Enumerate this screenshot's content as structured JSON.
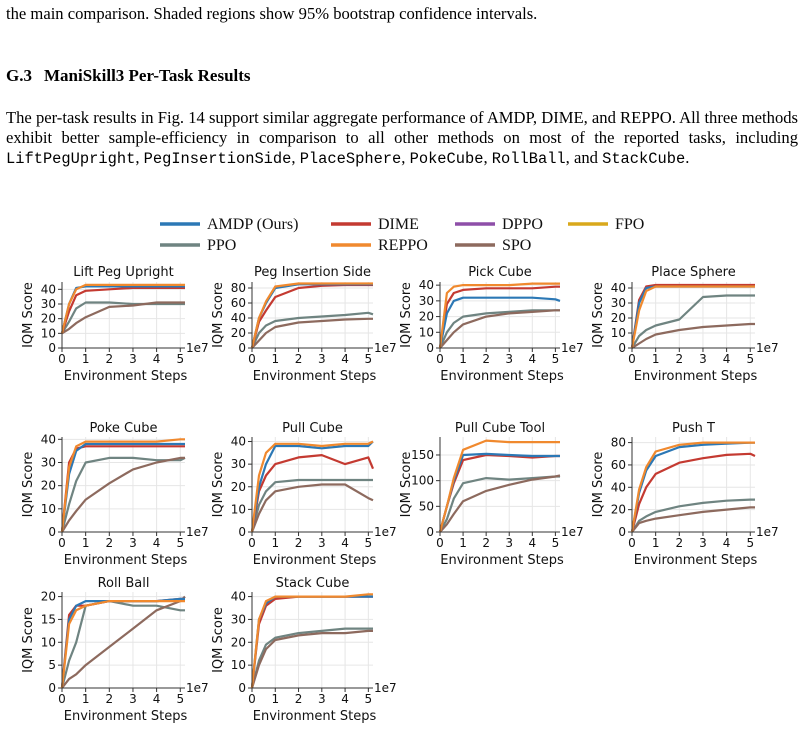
{
  "document": {
    "intro_tail": "the main comparison. Shaded regions show 95% bootstrap confidence intervals.",
    "section": {
      "number": "G.3",
      "title": "ManiSkill3 Per-Task Results"
    },
    "paragraph": [
      {
        "text": "The per-task results in Fig. 14 support similar aggregate performance of AMDP, DIME, and REPPO. All three methods exhibit better sample-efficiency in comparison to all other methods on most of the reported tasks, including "
      },
      {
        "code": "LiftPegUpright"
      },
      {
        "text": ", "
      },
      {
        "code": "PegInsertionSide"
      },
      {
        "text": ", "
      },
      {
        "code": "PlaceSphere"
      },
      {
        "text": ", "
      },
      {
        "code": "PokeCube"
      },
      {
        "text": ", "
      },
      {
        "code": "RollBall"
      },
      {
        "text": ", and "
      },
      {
        "code": "StackCube"
      },
      {
        "text": "."
      }
    ]
  },
  "figure": {
    "legend": [
      {
        "name": "AMDP (Ours)",
        "color": "#2c78b5"
      },
      {
        "name": "DIME",
        "color": "#c43a31"
      },
      {
        "name": "DPPO",
        "color": "#8e4fa8"
      },
      {
        "name": "FPO",
        "color": "#d9a81c"
      },
      {
        "name": "PPO",
        "color": "#6f8481"
      },
      {
        "name": "REPPO",
        "color": "#f0892e"
      },
      {
        "name": "SPO",
        "color": "#8d6a5e"
      }
    ]
  },
  "chart_data": [
    {
      "type": "line",
      "title": "Lift Peg Upright",
      "ylabel": "IQM Score",
      "xlabel": "Environment Steps",
      "x_offset_label": "1e7",
      "x": [
        0,
        0.3,
        0.6,
        1,
        2,
        3,
        4,
        5,
        5.2
      ],
      "xlim": [
        0,
        5.2
      ],
      "xticks": [
        0,
        1,
        2,
        3,
        4,
        5
      ],
      "ylim": [
        0,
        45
      ],
      "yticks": [
        0,
        10,
        20,
        30,
        40
      ],
      "grid": true,
      "series": [
        {
          "name": "PPO",
          "values": [
            10,
            18,
            27,
            31,
            31,
            30,
            30,
            30,
            30
          ]
        },
        {
          "name": "SPO",
          "values": [
            10,
            13,
            17,
            21,
            28,
            29,
            31,
            31,
            31
          ]
        },
        {
          "name": "DIME",
          "values": [
            10,
            25,
            36,
            39,
            40,
            41,
            41,
            41,
            41
          ]
        },
        {
          "name": "AMDP (Ours)",
          "values": [
            10,
            30,
            41,
            42,
            42,
            42,
            42,
            42,
            42
          ]
        },
        {
          "name": "REPPO",
          "values": [
            10,
            30,
            40,
            43,
            43,
            43,
            43,
            43,
            43
          ]
        }
      ]
    },
    {
      "type": "line",
      "title": "Peg Insertion Side",
      "ylabel": "IQM Score",
      "xlabel": "Environment Steps",
      "x_offset_label": "1e7",
      "x": [
        0,
        0.3,
        0.6,
        1,
        2,
        3,
        4,
        5,
        5.2
      ],
      "xlim": [
        0,
        5.2
      ],
      "xticks": [
        0,
        1,
        2,
        3,
        4,
        5
      ],
      "ylim": [
        0,
        88
      ],
      "yticks": [
        0,
        20,
        40,
        60,
        80
      ],
      "grid": true,
      "series": [
        {
          "name": "PPO",
          "values": [
            0,
            20,
            30,
            36,
            40,
            42,
            44,
            47,
            45
          ]
        },
        {
          "name": "SPO",
          "values": [
            0,
            10,
            20,
            28,
            34,
            36,
            38,
            39,
            39
          ]
        },
        {
          "name": "DIME",
          "values": [
            0,
            35,
            50,
            68,
            80,
            83,
            84,
            84,
            84
          ]
        },
        {
          "name": "AMDP (Ours)",
          "values": [
            0,
            40,
            60,
            80,
            85,
            85,
            85,
            85,
            85
          ]
        },
        {
          "name": "REPPO",
          "values": [
            0,
            40,
            62,
            82,
            86,
            86,
            86,
            86,
            86
          ]
        }
      ]
    },
    {
      "type": "line",
      "title": "Pick Cube",
      "ylabel": "IQM Score",
      "xlabel": "Environment Steps",
      "x_offset_label": "1e7",
      "x": [
        0,
        0.3,
        0.6,
        1,
        2,
        3,
        4,
        5,
        5.2
      ],
      "xlim": [
        0,
        5.2
      ],
      "xticks": [
        0,
        1,
        2,
        3,
        4,
        5
      ],
      "ylim": [
        0,
        42
      ],
      "yticks": [
        0,
        10,
        20,
        30,
        40
      ],
      "grid": true,
      "series": [
        {
          "name": "PPO",
          "values": [
            0,
            10,
            16,
            20,
            22,
            23,
            24,
            24,
            24
          ]
        },
        {
          "name": "SPO",
          "values": [
            0,
            5,
            10,
            15,
            20,
            22,
            23,
            24,
            24
          ]
        },
        {
          "name": "DIME",
          "values": [
            0,
            28,
            35,
            37,
            38,
            38,
            38,
            39,
            39
          ]
        },
        {
          "name": "AMDP (Ours)",
          "values": [
            0,
            22,
            30,
            32,
            32,
            32,
            32,
            31,
            30
          ]
        },
        {
          "name": "REPPO",
          "values": [
            0,
            35,
            39,
            40,
            40,
            40,
            41,
            41,
            41
          ]
        }
      ]
    },
    {
      "type": "line",
      "title": "Place Sphere",
      "ylabel": "IQM Score",
      "xlabel": "Environment Steps",
      "x_offset_label": "1e7",
      "x": [
        0,
        0.3,
        0.6,
        1,
        2,
        3,
        4,
        5,
        5.2
      ],
      "xlim": [
        0,
        5.2
      ],
      "xticks": [
        0,
        1,
        2,
        3,
        4,
        5
      ],
      "ylim": [
        0,
        44
      ],
      "yticks": [
        0,
        10,
        20,
        30,
        40
      ],
      "grid": true,
      "series": [
        {
          "name": "PPO",
          "values": [
            0,
            8,
            12,
            15,
            19,
            34,
            35,
            35,
            35
          ]
        },
        {
          "name": "SPO",
          "values": [
            0,
            3,
            6,
            9,
            12,
            14,
            15,
            16,
            16
          ]
        },
        {
          "name": "DIME",
          "values": [
            0,
            32,
            41,
            42,
            42,
            42,
            42,
            42,
            42
          ]
        },
        {
          "name": "AMDP (Ours)",
          "values": [
            0,
            30,
            40,
            41,
            41,
            41,
            41,
            41,
            41
          ]
        },
        {
          "name": "REPPO",
          "values": [
            0,
            25,
            38,
            41,
            41,
            41,
            41,
            41,
            41
          ]
        }
      ]
    },
    {
      "type": "line",
      "title": "Poke Cube",
      "ylabel": "IQM Score",
      "xlabel": "Environment Steps",
      "x_offset_label": "1e7",
      "x": [
        0,
        0.3,
        0.6,
        1,
        2,
        3,
        4,
        5,
        5.2
      ],
      "xlim": [
        0,
        5.2
      ],
      "xticks": [
        0,
        1,
        2,
        3,
        4,
        5
      ],
      "ylim": [
        0,
        41
      ],
      "yticks": [
        0,
        10,
        20,
        30,
        40
      ],
      "grid": true,
      "series": [
        {
          "name": "PPO",
          "values": [
            0,
            12,
            22,
            30,
            32,
            32,
            31,
            31,
            32
          ]
        },
        {
          "name": "SPO",
          "values": [
            0,
            5,
            9,
            14,
            21,
            27,
            30,
            32,
            32
          ]
        },
        {
          "name": "DIME",
          "values": [
            0,
            30,
            36,
            37,
            37,
            37,
            37,
            37,
            37
          ]
        },
        {
          "name": "AMDP (Ours)",
          "values": [
            0,
            25,
            35,
            38,
            38,
            38,
            38,
            38,
            38
          ]
        },
        {
          "name": "REPPO",
          "values": [
            0,
            28,
            37,
            39,
            39,
            39,
            39,
            40,
            40
          ]
        }
      ]
    },
    {
      "type": "line",
      "title": "Pull Cube",
      "ylabel": "IQM Score",
      "xlabel": "Environment Steps",
      "x_offset_label": "1e7",
      "x": [
        0,
        0.3,
        0.6,
        1,
        2,
        3,
        4,
        5,
        5.2
      ],
      "xlim": [
        0,
        5.2
      ],
      "xticks": [
        0,
        1,
        2,
        3,
        4,
        5
      ],
      "ylim": [
        0,
        42
      ],
      "yticks": [
        0,
        10,
        20,
        30,
        40
      ],
      "grid": true,
      "series": [
        {
          "name": "PPO",
          "values": [
            0,
            12,
            18,
            22,
            23,
            23,
            23,
            23,
            23
          ]
        },
        {
          "name": "SPO",
          "values": [
            0,
            8,
            14,
            18,
            20,
            21,
            21,
            15,
            14
          ]
        },
        {
          "name": "DIME",
          "values": [
            0,
            18,
            25,
            30,
            33,
            34,
            30,
            33,
            28
          ]
        },
        {
          "name": "AMDP (Ours)",
          "values": [
            0,
            20,
            30,
            38,
            38,
            37,
            38,
            38,
            40
          ]
        },
        {
          "name": "REPPO",
          "values": [
            0,
            25,
            35,
            39,
            39,
            38,
            39,
            39,
            40
          ]
        }
      ]
    },
    {
      "type": "line",
      "title": "Pull Cube Tool",
      "ylabel": "IQM Score",
      "xlabel": "Environment Steps",
      "x_offset_label": "1e7",
      "x": [
        0,
        0.3,
        0.6,
        1,
        2,
        3,
        4,
        5,
        5.2
      ],
      "xlim": [
        0,
        5.2
      ],
      "xticks": [
        0,
        1,
        2,
        3,
        4,
        5
      ],
      "ylim": [
        0,
        185
      ],
      "yticks": [
        0,
        50,
        100,
        150
      ],
      "grid": true,
      "series": [
        {
          "name": "PPO",
          "values": [
            0,
            25,
            65,
            95,
            105,
            102,
            105,
            108,
            108
          ]
        },
        {
          "name": "SPO",
          "values": [
            0,
            15,
            35,
            60,
            80,
            92,
            102,
            108,
            110
          ]
        },
        {
          "name": "DIME",
          "values": [
            0,
            50,
            95,
            140,
            150,
            148,
            145,
            148,
            148
          ]
        },
        {
          "name": "AMDP (Ours)",
          "values": [
            0,
            50,
            100,
            150,
            152,
            150,
            148,
            148,
            148
          ]
        },
        {
          "name": "REPPO",
          "values": [
            0,
            50,
            105,
            160,
            178,
            175,
            175,
            175,
            175
          ]
        }
      ]
    },
    {
      "type": "line",
      "title": "Push T",
      "ylabel": "IQM Score",
      "xlabel": "Environment Steps",
      "x_offset_label": "1e7",
      "x": [
        0,
        0.3,
        0.6,
        1,
        2,
        3,
        4,
        5,
        5.2
      ],
      "xlim": [
        0,
        5.2
      ],
      "xticks": [
        0,
        1,
        2,
        3,
        4,
        5
      ],
      "ylim": [
        0,
        85
      ],
      "yticks": [
        0,
        20,
        40,
        60,
        80
      ],
      "grid": true,
      "series": [
        {
          "name": "PPO",
          "values": [
            0,
            10,
            14,
            18,
            23,
            26,
            28,
            29,
            29
          ]
        },
        {
          "name": "SPO",
          "values": [
            0,
            8,
            10,
            12,
            15,
            18,
            20,
            22,
            22
          ]
        },
        {
          "name": "DIME",
          "values": [
            0,
            25,
            40,
            52,
            62,
            66,
            69,
            70,
            68
          ]
        },
        {
          "name": "AMDP (Ours)",
          "values": [
            0,
            35,
            55,
            68,
            76,
            78,
            79,
            80,
            80
          ]
        },
        {
          "name": "REPPO",
          "values": [
            0,
            38,
            58,
            72,
            78,
            80,
            80,
            80,
            80
          ]
        }
      ]
    },
    {
      "type": "line",
      "title": "Roll Ball",
      "ylabel": "IQM Score",
      "xlabel": "Environment Steps",
      "x_offset_label": "1e7",
      "x": [
        0,
        0.3,
        0.6,
        1,
        2,
        3,
        4,
        5,
        5.2
      ],
      "xlim": [
        0,
        5.2
      ],
      "xticks": [
        0,
        1,
        2,
        3,
        4,
        5
      ],
      "ylim": [
        0,
        21
      ],
      "yticks": [
        0,
        5,
        10,
        15,
        20
      ],
      "grid": true,
      "series": [
        {
          "name": "PPO",
          "values": [
            0,
            6,
            10,
            18,
            19,
            18,
            18,
            17,
            17
          ]
        },
        {
          "name": "SPO",
          "values": [
            0,
            2,
            3,
            5,
            9,
            13,
            17,
            19,
            20
          ]
        },
        {
          "name": "DIME",
          "values": [
            0,
            16,
            18,
            18,
            19,
            19,
            19,
            19.5,
            19.5
          ]
        },
        {
          "name": "AMDP (Ours)",
          "values": [
            0,
            15,
            18,
            19,
            19,
            19,
            19,
            19.5,
            19.5
          ]
        },
        {
          "name": "REPPO",
          "values": [
            0,
            14,
            17,
            18,
            19,
            19,
            19,
            19,
            19
          ]
        }
      ]
    },
    {
      "type": "line",
      "title": "Stack Cube",
      "ylabel": "IQM Score",
      "xlabel": "Environment Steps",
      "x_offset_label": "1e7",
      "x": [
        0,
        0.3,
        0.6,
        1,
        2,
        3,
        4,
        5,
        5.2
      ],
      "xlim": [
        0,
        5.2
      ],
      "xticks": [
        0,
        1,
        2,
        3,
        4,
        5
      ],
      "ylim": [
        0,
        42
      ],
      "yticks": [
        0,
        10,
        20,
        30,
        40
      ],
      "grid": true,
      "series": [
        {
          "name": "PPO",
          "values": [
            0,
            12,
            19,
            22,
            24,
            25,
            26,
            26,
            26
          ]
        },
        {
          "name": "SPO",
          "values": [
            0,
            10,
            17,
            21,
            23,
            24,
            24,
            25,
            25
          ]
        },
        {
          "name": "DIME",
          "values": [
            0,
            28,
            36,
            39,
            40,
            40,
            40,
            40,
            40
          ]
        },
        {
          "name": "AMDP (Ours)",
          "values": [
            0,
            30,
            37,
            40,
            40,
            40,
            40,
            40,
            40
          ]
        },
        {
          "name": "REPPO",
          "values": [
            0,
            30,
            38,
            40,
            40,
            40,
            40,
            41,
            41
          ]
        }
      ]
    }
  ]
}
